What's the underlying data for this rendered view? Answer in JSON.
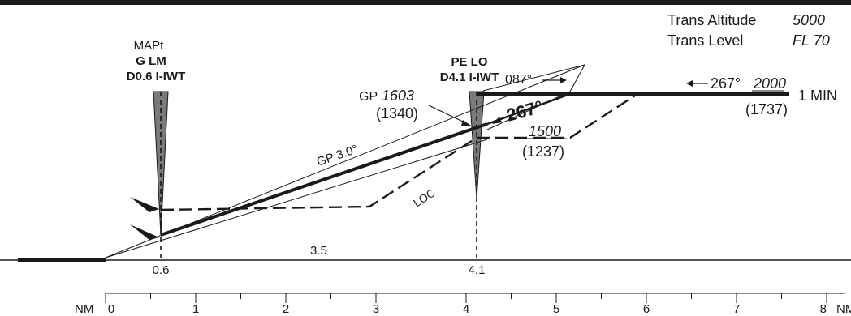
{
  "trans": {
    "altitude_label": "Trans Altitude",
    "altitude_value": "5000",
    "level_label": "Trans Level",
    "level_value": "FL 70"
  },
  "mapt": {
    "title": "MAPt",
    "name": "G LM",
    "dme": "D0.6 I-IWT",
    "distance": "0.6"
  },
  "faf": {
    "name": "PE LO",
    "dme": "D4.1 I-IWT",
    "distance": "4.1"
  },
  "holding": {
    "outbound_course": "087°",
    "inbound_course": "267°",
    "altitude": "2000",
    "height": "(1737)",
    "leg_time": "1 MIN"
  },
  "final": {
    "course": "267°",
    "gp_alt": "1603",
    "gp_prefix": "GP",
    "gp_height": "(1340)",
    "gp_angle": "GP 3.0°",
    "loc_label": "LOC",
    "loc_alt": "1500",
    "loc_height": "(1237)",
    "segment_distance": "3.5"
  },
  "scale": {
    "unit_left": "NM",
    "unit_right": "NM",
    "tick_labels": [
      "0",
      "1",
      "2",
      "3",
      "4",
      "5",
      "6",
      "7",
      "8"
    ]
  }
}
